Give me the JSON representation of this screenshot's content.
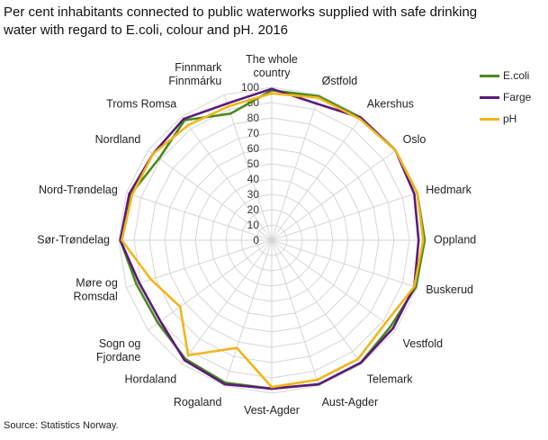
{
  "title_lines": [
    "Per cent inhabitants connected to public waterworks supplied with safe drinking",
    "water with regard to E.coli, colour and pH. 2016"
  ],
  "source": "Source: Statistics Norway.",
  "colors": {
    "E.coli": "#4a8a1c",
    "Farge": "#5b1a7a",
    "pH": "#f2b51a",
    "grid": "#d6d6d6"
  },
  "chart_data": {
    "type": "radar",
    "title": "Per cent inhabitants connected to public waterworks supplied with safe drinking water with regard to E.coli, colour and pH. 2016",
    "categories": [
      "The whole country",
      "Østfold",
      "Akershus",
      "Oslo",
      "Hedmark",
      "Oppland",
      "Buskerud",
      "Vestfold",
      "Telemark",
      "Aust-Agder",
      "Vest-Agder",
      "Rogaland",
      "Hordaland",
      "Sogn og Fjordane",
      "Møre og Romsdal",
      "Sør-Trøndelag",
      "Nord-Trøndelag",
      "Nordland",
      "Troms Romsa",
      "Finnmark Finnmárku"
    ],
    "category_label_lines": [
      [
        "The whole",
        "country"
      ],
      [
        "Østfold"
      ],
      [
        "Akershus"
      ],
      [
        "Oslo"
      ],
      [
        "Hedmark"
      ],
      [
        "Oppland"
      ],
      [
        "Buskerud"
      ],
      [
        "Vestfold"
      ],
      [
        "Telemark"
      ],
      [
        "Aust-Agder"
      ],
      [
        "Vest-Agder"
      ],
      [
        "Rogaland"
      ],
      [
        "Hordaland"
      ],
      [
        "Sogn og",
        "Fjordane"
      ],
      [
        "Møre og",
        "Romsdal"
      ],
      [
        "Sør-Trøndelag"
      ],
      [
        "Nord-Trøndelag"
      ],
      [
        "Nordland"
      ],
      [
        "Troms Romsa"
      ],
      [
        "Finnmark",
        "Finnmárku"
      ]
    ],
    "series": [
      {
        "name": "E.coli",
        "values": [
          98,
          99,
          99,
          100,
          100,
          100,
          99,
          96,
          99,
          99,
          97,
          98,
          96,
          92,
          93,
          99,
          97,
          91,
          97,
          87
        ]
      },
      {
        "name": "Farge",
        "values": [
          99,
          94,
          99,
          100,
          98,
          96,
          98,
          98,
          99,
          99,
          97,
          99,
          97,
          90,
          91,
          99,
          98,
          96,
          98,
          94
        ]
      },
      {
        "name": "pH",
        "values": [
          96,
          98,
          98,
          100,
          100,
          99,
          98,
          92,
          96,
          96,
          96,
          74,
          93,
          74,
          83,
          98,
          96,
          96,
          93,
          92
        ]
      }
    ],
    "r_ticks": [
      0,
      10,
      20,
      30,
      40,
      50,
      60,
      70,
      80,
      90,
      100
    ],
    "rlim": [
      0,
      100
    ],
    "grid": true,
    "legend": "right"
  }
}
